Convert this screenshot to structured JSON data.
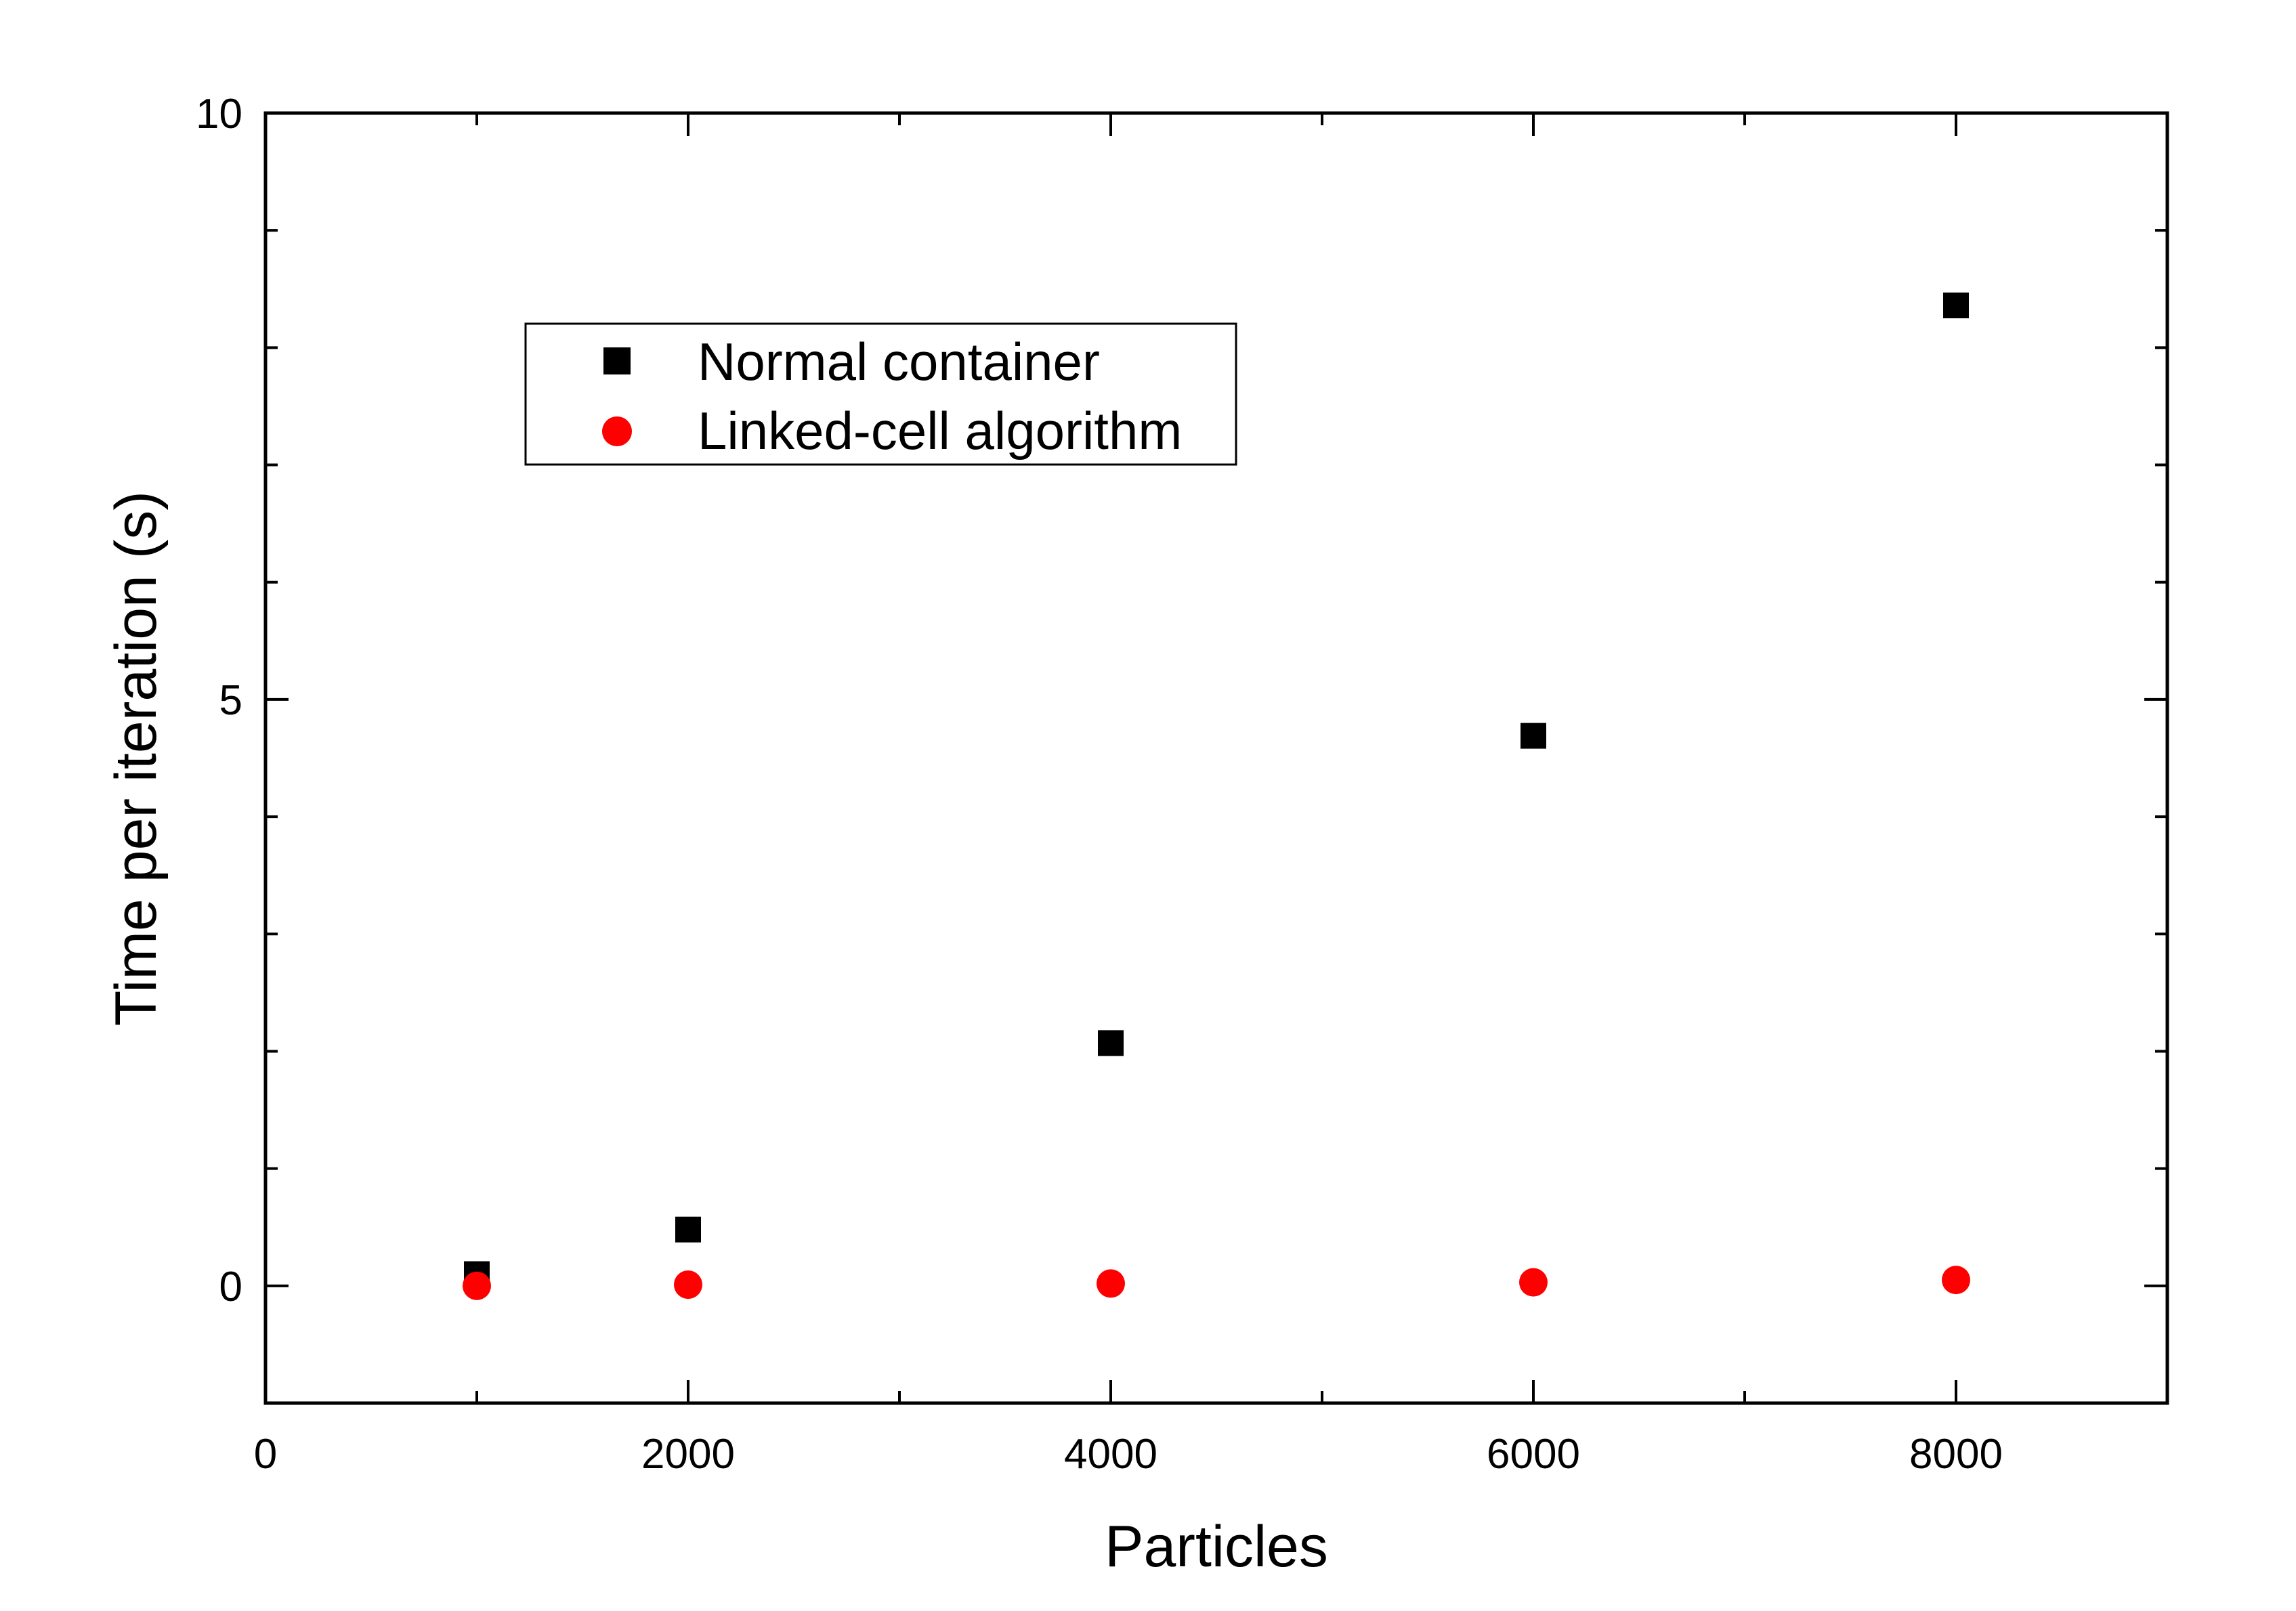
{
  "chart_data": {
    "type": "scatter",
    "xlabel": "Particles",
    "ylabel": "Time per iteration (s)",
    "xlim": [
      0,
      9000
    ],
    "ylim": [
      -1,
      10
    ],
    "x_ticks": [
      0,
      2000,
      4000,
      6000,
      8000
    ],
    "x_tick_labels": [
      "0",
      "2000",
      "4000",
      "6000",
      "8000"
    ],
    "x_minor_ticks": [
      1000,
      3000,
      5000,
      7000
    ],
    "y_ticks": [
      0,
      5,
      10
    ],
    "y_tick_labels": [
      "0",
      "5",
      "10"
    ],
    "y_minor_ticks": [
      -1,
      1,
      2,
      3,
      4,
      6,
      7,
      8,
      9
    ],
    "grid": false,
    "legend_position": "upper-left",
    "series": [
      {
        "name": "Normal container",
        "marker": "square",
        "color": "#000000",
        "x": [
          1000,
          2000,
          4000,
          6000,
          8000
        ],
        "y": [
          0.1,
          0.48,
          2.07,
          4.69,
          8.36
        ]
      },
      {
        "name": "Linked-cell algorithm",
        "marker": "circle",
        "color": "#ff0000",
        "x": [
          1000,
          2000,
          4000,
          6000,
          8000
        ],
        "y": [
          0.0,
          0.01,
          0.02,
          0.03,
          0.05
        ]
      }
    ]
  }
}
